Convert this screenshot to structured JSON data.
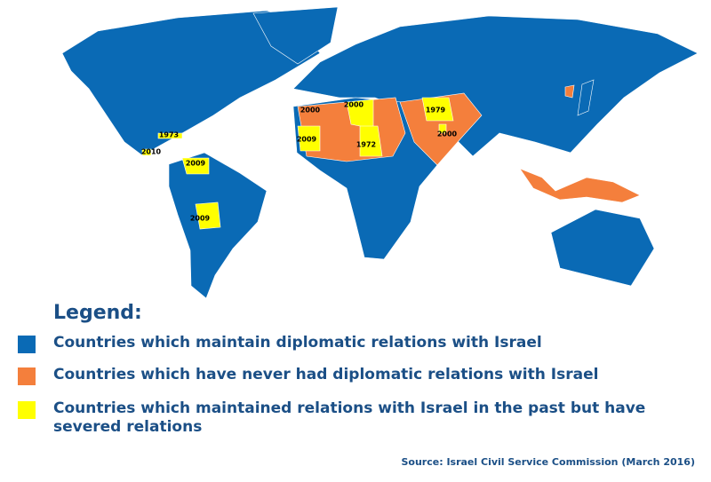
{
  "map": {
    "year_labels": [
      "1973",
      "2010",
      "2009",
      "2009",
      "2000",
      "2000",
      "2009",
      "1972",
      "1979",
      "2000"
    ]
  },
  "legend": {
    "title": "Legend:",
    "items": [
      {
        "color": "#0a6ab5",
        "label": "Countries which maintain diplomatic relations with Israel"
      },
      {
        "color": "#f47f3c",
        "label": "Countries which have never had diplomatic relations with Israel"
      },
      {
        "color": "#ffff00",
        "label": "Countries which maintained relations with Israel in the past but have severed relations"
      }
    ]
  },
  "source": "Source: Israel Civil Service Commission (March 2016)"
}
